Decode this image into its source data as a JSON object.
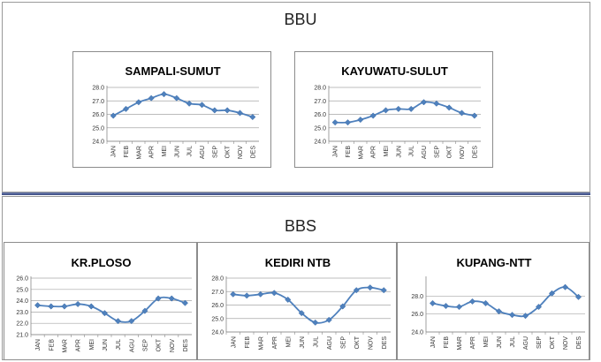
{
  "sections": {
    "bbu": "BBU",
    "bbs": "BBS"
  },
  "colors": {
    "line": "#4f81bd",
    "grid": "#a6a6a6",
    "axis": "#888888"
  },
  "chart_data": [
    {
      "type": "line",
      "title": "SAMPALI-SUMUT",
      "categories": [
        "JAN",
        "FEB",
        "MAR",
        "APR",
        "MEI",
        "JUN",
        "JUL",
        "AGU",
        "SEP",
        "OKT",
        "NOV",
        "DES"
      ],
      "values": [
        25.9,
        26.4,
        26.9,
        27.2,
        27.5,
        27.2,
        26.8,
        26.7,
        26.3,
        26.3,
        26.1,
        25.8
      ],
      "ylim": [
        24.0,
        28.0
      ],
      "yticks": [
        "28.0",
        "27.0",
        "26.0",
        "25.0",
        "24.0"
      ],
      "grid": true
    },
    {
      "type": "line",
      "title": "KAYUWATU-SULUT",
      "categories": [
        "JAN",
        "FEB",
        "MAR",
        "APR",
        "MEI",
        "JUN",
        "JUL",
        "AGU",
        "SEP",
        "OKT",
        "NOV",
        "DES"
      ],
      "values": [
        25.4,
        25.4,
        25.6,
        25.9,
        26.3,
        26.4,
        26.4,
        26.9,
        26.8,
        26.5,
        26.1,
        25.9
      ],
      "ylim": [
        24.0,
        28.0
      ],
      "yticks": [
        "28.0",
        "27.0",
        "26.0",
        "25.0",
        "24.0"
      ],
      "grid": true
    },
    {
      "type": "line",
      "title": "KR.PLOSO",
      "categories": [
        "JAN",
        "FEB",
        "MAR",
        "APR",
        "MEI",
        "JUN",
        "JUL",
        "AGU",
        "SEP",
        "OKT",
        "NOV",
        "DES"
      ],
      "values": [
        23.6,
        23.5,
        23.5,
        23.7,
        23.5,
        22.9,
        22.2,
        22.2,
        23.1,
        24.2,
        24.2,
        23.8
      ],
      "ylim": [
        21.0,
        26.0
      ],
      "yticks": [
        "26.0",
        "25.0",
        "24.0",
        "23.0",
        "22.0",
        "21.0"
      ],
      "grid": true
    },
    {
      "type": "line",
      "title": "KEDIRI NTB",
      "categories": [
        "JAN",
        "FEB",
        "MAR",
        "APR",
        "MEI",
        "JUN",
        "JUL",
        "AGU",
        "SEP",
        "OKT",
        "NOV",
        "DES"
      ],
      "values": [
        26.8,
        26.7,
        26.8,
        26.9,
        26.4,
        25.4,
        24.7,
        24.9,
        25.9,
        27.1,
        27.3,
        27.1
      ],
      "ylim": [
        24.0,
        28.0
      ],
      "yticks": [
        "28.0",
        "27.0",
        "26.0",
        "25.0",
        "24.0"
      ],
      "grid": true
    },
    {
      "type": "line",
      "title": "KUPANG-NTT",
      "categories": [
        "JAN",
        "FEB",
        "MAR",
        "APR",
        "MEI",
        "JUN",
        "JUL",
        "AGU",
        "SEP",
        "OKT",
        "NOV",
        "DES"
      ],
      "values": [
        27.2,
        26.9,
        26.8,
        27.4,
        27.2,
        26.3,
        25.9,
        25.8,
        26.8,
        28.3,
        29.0,
        27.9
      ],
      "ylim": [
        24.0,
        30.0
      ],
      "yticks": [
        "28.0",
        "26.0",
        "24.0"
      ],
      "ytick_values": [
        28.0,
        26.0,
        24.0
      ],
      "grid": true
    }
  ]
}
